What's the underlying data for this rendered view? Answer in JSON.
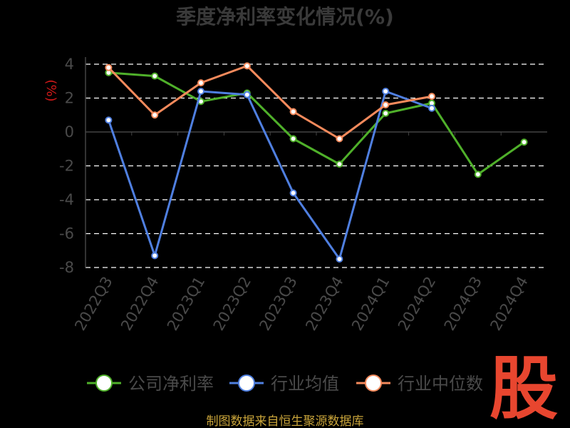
{
  "chart_data": {
    "type": "line",
    "title": "季度净利率变化情况(%)",
    "ylabel": "(%)",
    "categories": [
      "2022Q3",
      "2022Q4",
      "2023Q1",
      "2023Q2",
      "2023Q3",
      "2023Q4",
      "2024Q1",
      "2024Q2",
      "2024Q3",
      "2024Q4"
    ],
    "yticks": [
      4,
      2,
      0,
      -2,
      -4,
      -6,
      -8
    ],
    "ylim": [
      -8,
      4
    ],
    "grid": true,
    "legend_position": "bottom",
    "series": [
      {
        "name": "公司净利率",
        "color": "#4fb02a",
        "values": [
          3.5,
          3.3,
          1.8,
          2.3,
          -0.4,
          -1.9,
          1.1,
          1.7,
          -2.5,
          -0.6
        ]
      },
      {
        "name": "行业均值",
        "color": "#4f7fe0",
        "values": [
          0.7,
          -7.3,
          2.4,
          2.2,
          -3.6,
          -7.5,
          2.4,
          1.4,
          null,
          null
        ]
      },
      {
        "name": "行业中位数",
        "color": "#f58a5c",
        "values": [
          3.8,
          1.0,
          2.9,
          3.9,
          1.2,
          -0.4,
          1.6,
          2.1,
          null,
          null
        ]
      }
    ]
  },
  "footer": {
    "source": "制图数据来自恒生聚源数据库",
    "watermark": "股"
  }
}
